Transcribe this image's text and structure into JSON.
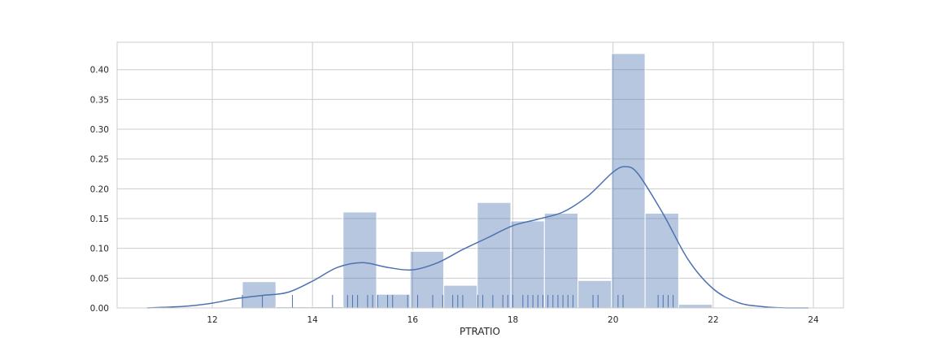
{
  "chart_data": {
    "type": "bar",
    "title": "",
    "xlabel": "PTRATIO",
    "ylabel": "",
    "xlim": [
      10.1,
      24.6
    ],
    "ylim": [
      0,
      0.446
    ],
    "grid": true,
    "x_ticks": [
      12,
      14,
      16,
      18,
      20,
      22,
      24
    ],
    "y_ticks": [
      0.0,
      0.05,
      0.1,
      0.15,
      0.2,
      0.25,
      0.3,
      0.35,
      0.4
    ],
    "x_tick_labels": [
      "12",
      "14",
      "16",
      "18",
      "20",
      "22",
      "24"
    ],
    "y_tick_labels": [
      "0.00",
      "0.05",
      "0.10",
      "0.15",
      "0.20",
      "0.25",
      "0.30",
      "0.35",
      "0.40"
    ],
    "histogram": {
      "bin_edges": [
        12.6,
        13.27,
        13.94,
        14.61,
        15.28,
        15.95,
        16.62,
        17.29,
        17.96,
        18.63,
        19.3,
        19.97,
        20.64,
        21.31,
        21.98
      ],
      "values": [
        0.044,
        0.002,
        0.002,
        0.161,
        0.023,
        0.095,
        0.038,
        0.177,
        0.146,
        0.159,
        0.046,
        0.427,
        0.159,
        0.006
      ],
      "color": "#4c72b0"
    },
    "kde": {
      "x": [
        10.7,
        11.0,
        11.5,
        12.0,
        12.5,
        13.0,
        13.5,
        14.0,
        14.5,
        15.0,
        15.5,
        16.0,
        16.5,
        17.0,
        17.5,
        18.0,
        18.5,
        19.0,
        19.5,
        20.0,
        20.25,
        20.5,
        21.0,
        21.5,
        22.0,
        22.5,
        23.0,
        23.5,
        23.9
      ],
      "y": [
        0.0,
        0.001,
        0.003,
        0.008,
        0.016,
        0.021,
        0.026,
        0.045,
        0.068,
        0.076,
        0.068,
        0.064,
        0.076,
        0.098,
        0.118,
        0.138,
        0.149,
        0.161,
        0.188,
        0.228,
        0.237,
        0.225,
        0.158,
        0.081,
        0.032,
        0.009,
        0.002,
        0.0,
        0.0
      ],
      "color": "#4c72b0"
    },
    "rug": {
      "values": [
        12.6,
        13.0,
        13.6,
        14.4,
        14.7,
        14.8,
        14.9,
        15.1,
        15.2,
        15.3,
        15.5,
        15.6,
        15.9,
        16.1,
        16.4,
        16.6,
        16.8,
        16.9,
        17.0,
        17.3,
        17.4,
        17.6,
        17.8,
        17.9,
        18.0,
        18.2,
        18.3,
        18.4,
        18.5,
        18.6,
        18.7,
        18.8,
        18.9,
        19.0,
        19.1,
        19.2,
        19.6,
        19.7,
        20.1,
        20.2,
        20.9,
        21.0,
        21.1,
        21.2
      ],
      "color": "#4c72b0"
    }
  }
}
